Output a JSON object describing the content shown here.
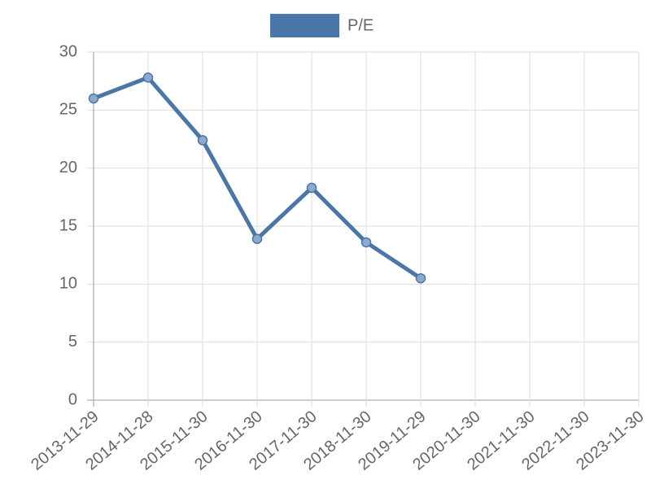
{
  "chart_data": {
    "type": "line",
    "categories": [
      "2013-11-29",
      "2014-11-28",
      "2015-11-30",
      "2016-11-30",
      "2017-11-30",
      "2018-11-30",
      "2019-11-29",
      "2020-11-30",
      "2021-11-30",
      "2022-11-30",
      "2023-11-30"
    ],
    "series": [
      {
        "name": "P/E",
        "color": "#4a77a8",
        "values": [
          26.0,
          27.8,
          22.4,
          13.9,
          18.3,
          13.6,
          10.5,
          null,
          null,
          null,
          null
        ]
      }
    ],
    "ylim": [
      0,
      30
    ],
    "yticks": [
      0,
      5,
      10,
      15,
      20,
      25,
      30
    ],
    "grid": true,
    "legend": "top"
  }
}
